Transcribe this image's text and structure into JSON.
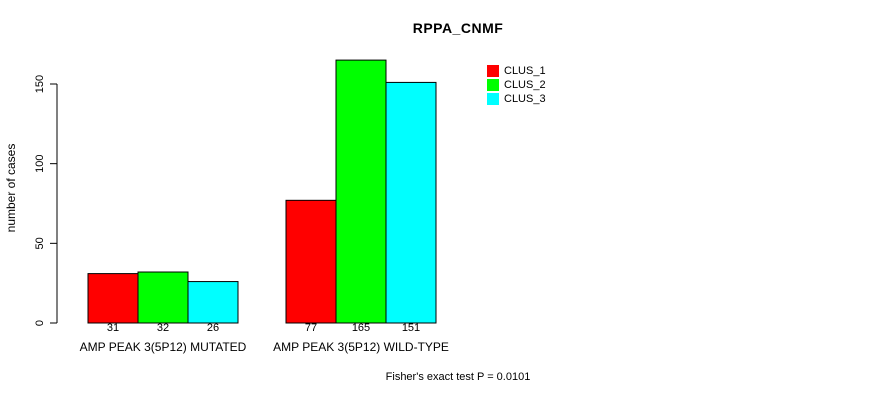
{
  "figure": {
    "background_color": "#ffffff",
    "text_color": "#000000"
  },
  "chart_data": {
    "type": "bar",
    "title": "RPPA_CNMF",
    "xlabel": "",
    "ylabel": "number of cases",
    "categories": [
      "AMP PEAK 3(5P12) MUTATED",
      "AMP PEAK 3(5P12) WILD-TYPE"
    ],
    "series": [
      {
        "name": "CLUS_1",
        "color": "#ff0000",
        "values": [
          31,
          77
        ]
      },
      {
        "name": "CLUS_2",
        "color": "#00ff00",
        "values": [
          32,
          165
        ]
      },
      {
        "name": "CLUS_3",
        "color": "#00ffff",
        "values": [
          26,
          151
        ]
      }
    ],
    "yticks": [
      0,
      50,
      100,
      150
    ],
    "ylim": [
      0,
      150
    ],
    "grid": false,
    "bar_border_color": "#000000",
    "bar_value_labels_shown": true,
    "legend_position": "top-right"
  },
  "footer": {
    "note": "Fisher's exact test P = 0.0101"
  }
}
